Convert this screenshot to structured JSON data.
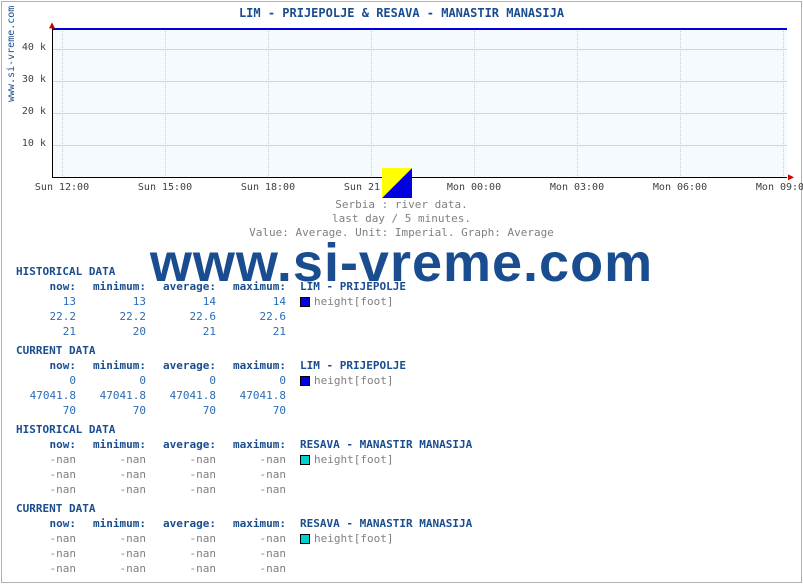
{
  "title": "LIM -  PRIJEPOLJE &  RESAVA -  MANASTIR MANASIJA",
  "title_color": "#1a4d8f",
  "ylabel": "www.si-vreme.com",
  "chart": {
    "type": "line",
    "background": "#f5faff",
    "grid_color": "#c0d8f0",
    "ylim": [
      0,
      47000
    ],
    "yticks": [
      10000,
      20000,
      30000,
      40000
    ],
    "ytick_labels": [
      "10 k",
      "20 k",
      "30 k",
      "40 k"
    ],
    "xtick_labels": [
      "Sun 12:00",
      "Sun 15:00",
      "Sun 18:00",
      "Sun 21:00",
      "Mon 00:00",
      "Mon 03:00",
      "Mon 06:00",
      "Mon 09:00"
    ],
    "series": [
      {
        "name": "LIM - PRIJEPOLJE",
        "color": "#0000e0",
        "value": 47041.8
      },
      {
        "name": "RESAVA - MANASTIR MANASIJA",
        "color": "#00d0d0",
        "value": null
      }
    ],
    "arrow_color": "#cc0000"
  },
  "caption": {
    "line1": "Serbia : river data.",
    "line2": "last day / 5 minutes.",
    "line3": "Value: Average. Unit: Imperial. Graph: Average"
  },
  "legend_triangle": {
    "yellow": "#ffff00",
    "blue": "#0000e0"
  },
  "watermark": "www.si-vreme.com",
  "watermark_color": "#1a4d8f",
  "blocks": [
    {
      "header": "HISTORICAL DATA",
      "label": "LIM -  PRIJEPOLJE",
      "swatch": "#0000e0",
      "unit": "height[foot]",
      "columns": [
        "now:",
        "minimum:",
        "average:",
        "maximum:"
      ],
      "rows": [
        [
          "13",
          "13",
          "14",
          "14"
        ],
        [
          "22.2",
          "22.2",
          "22.6",
          "22.6"
        ],
        [
          "21",
          "20",
          "21",
          "21"
        ]
      ]
    },
    {
      "header": "CURRENT DATA",
      "label": "LIM -  PRIJEPOLJE",
      "swatch": "#0000e0",
      "unit": "height[foot]",
      "columns": [
        "now:",
        "minimum:",
        "average:",
        "maximum:"
      ],
      "rows": [
        [
          "0",
          "0",
          "0",
          "0"
        ],
        [
          "47041.8",
          "47041.8",
          "47041.8",
          "47041.8"
        ],
        [
          "70",
          "70",
          "70",
          "70"
        ]
      ]
    },
    {
      "header": "HISTORICAL DATA",
      "label": "RESAVA -  MANASTIR MANASIJA",
      "swatch": "#00d0d0",
      "unit": "height[foot]",
      "columns": [
        "now:",
        "minimum:",
        "average:",
        "maximum:"
      ],
      "rows": [
        [
          "-nan",
          "-nan",
          "-nan",
          "-nan"
        ],
        [
          "-nan",
          "-nan",
          "-nan",
          "-nan"
        ],
        [
          "-nan",
          "-nan",
          "-nan",
          "-nan"
        ]
      ]
    },
    {
      "header": "CURRENT DATA",
      "label": "RESAVA -  MANASTIR MANASIJA",
      "swatch": "#00d0d0",
      "unit": "height[foot]",
      "columns": [
        "now:",
        "minimum:",
        "average:",
        "maximum:"
      ],
      "rows": [
        [
          "-nan",
          "-nan",
          "-nan",
          "-nan"
        ],
        [
          "-nan",
          "-nan",
          "-nan",
          "-nan"
        ],
        [
          "-nan",
          "-nan",
          "-nan",
          "-nan"
        ]
      ]
    }
  ]
}
